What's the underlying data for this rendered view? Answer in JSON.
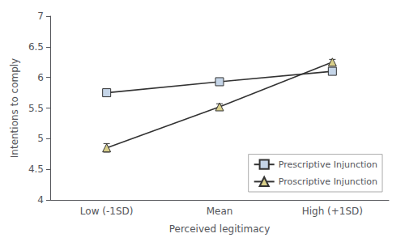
{
  "chart_data": {
    "type": "line",
    "xlabel": "Perceived legitimacy",
    "ylabel": "Intentions to comply",
    "categories": [
      "Low (-1SD)",
      "Mean",
      "High (+1SD)"
    ],
    "series": [
      {
        "name": "Prescriptive Injunction",
        "color": "#c5d5e8",
        "marker": "square",
        "values": [
          5.75,
          5.93,
          6.1
        ],
        "yerr": [
          0.05,
          0.035,
          0.05
        ]
      },
      {
        "name": "Proscriptive Injunction",
        "color": "#d9cf8a",
        "marker": "triangle",
        "values": [
          4.85,
          5.52,
          6.25
        ],
        "yerr": [
          0.07,
          0.05,
          0.045
        ]
      }
    ],
    "ylim": [
      4.0,
      7.0
    ],
    "yticks": [
      4,
      4.5,
      5,
      5.5,
      6,
      6.5,
      7
    ],
    "grid": false,
    "legend": "lower right"
  }
}
